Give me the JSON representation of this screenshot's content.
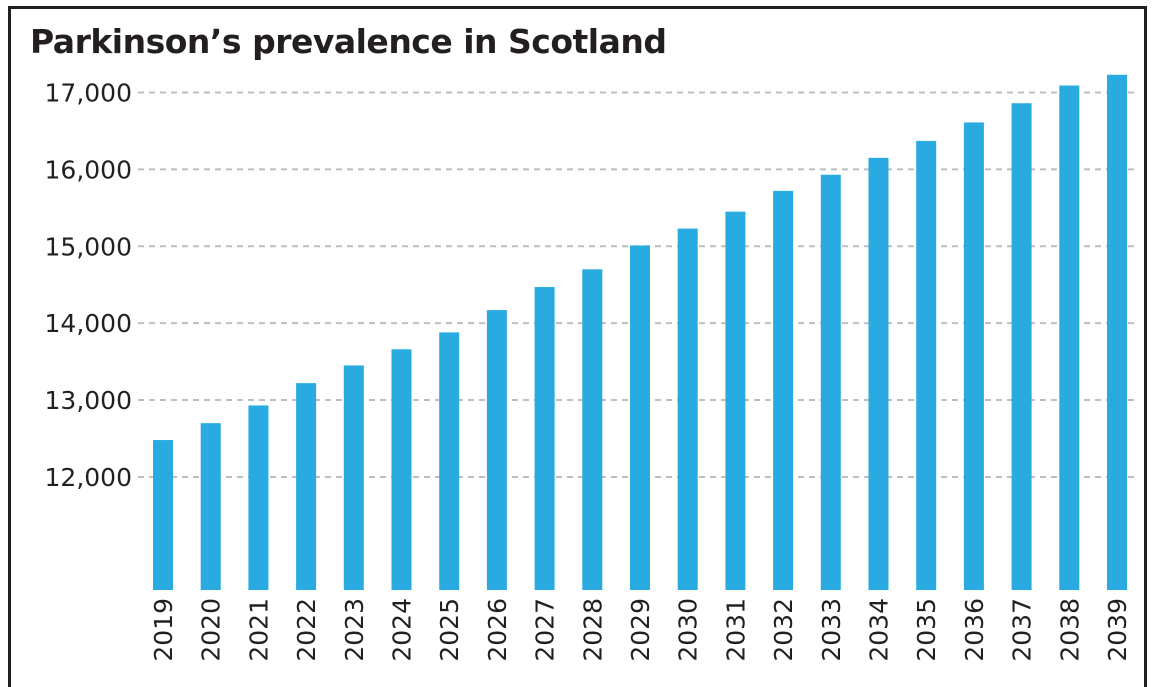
{
  "chart_data": {
    "type": "bar",
    "title": "Parkinson’s prevalence in Scotland",
    "xlabel": "",
    "ylabel": "",
    "grid": true,
    "ylim": [
      10530,
      17370
    ],
    "y_ticks": [
      12000,
      13000,
      14000,
      15000,
      16000,
      17000
    ],
    "y_tick_labels": [
      "12,000",
      "13,000",
      "14,000",
      "15,000",
      "16,000",
      "17,000"
    ],
    "categories": [
      "2019",
      "2020",
      "2021",
      "2022",
      "2023",
      "2024",
      "2025",
      "2026",
      "2027",
      "2028",
      "2029",
      "2030",
      "2031",
      "2032",
      "2033",
      "2034",
      "2035",
      "2036",
      "2037",
      "2038",
      "2039"
    ],
    "values": [
      12480,
      12700,
      12930,
      13220,
      13450,
      13660,
      13880,
      14170,
      14470,
      14700,
      15010,
      15230,
      15450,
      15720,
      15930,
      16150,
      16370,
      16610,
      16860,
      17090,
      17230
    ],
    "bar_color": "#29abe2",
    "grid_color": "#bcbec0"
  }
}
